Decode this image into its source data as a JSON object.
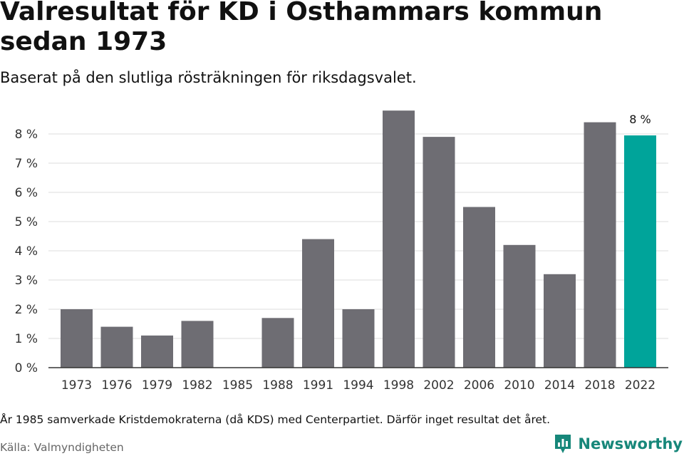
{
  "title": "Valresultat för KD i Osthammars kommun sedan 1973",
  "subtitle": "Baserat på den slutliga rösträkningen för riksdagsvalet.",
  "note": "År 1985 samverkade Kristdemokraterna (då KDS) med Centerpartiet. Därför inget resultat det året.",
  "source": "Källa: Valmyndigheten",
  "brand": "Newsworthy",
  "colors": {
    "bar": "#6e6d73",
    "highlight": "#00a49a",
    "grid": "#dcdcdc",
    "axis": "#333333",
    "brand": "#17877a"
  },
  "chart_data": {
    "type": "bar",
    "categories": [
      "1973",
      "1976",
      "1979",
      "1982",
      "1985",
      "1988",
      "1991",
      "1994",
      "1998",
      "2002",
      "2006",
      "2010",
      "2014",
      "2018",
      "2022"
    ],
    "values": [
      2.0,
      1.4,
      1.1,
      1.6,
      null,
      1.7,
      4.4,
      2.0,
      8.8,
      7.9,
      5.5,
      4.2,
      3.2,
      8.4,
      7.95
    ],
    "unit": "%",
    "ylim": [
      0,
      9
    ],
    "yticks": [
      "0 %",
      "1 %",
      "2 %",
      "3 %",
      "4 %",
      "5 %",
      "6 %",
      "7 %",
      "8 %"
    ],
    "highlight_category": "2022",
    "data_labels": [
      {
        "category": "2022",
        "text": "8 %"
      }
    ],
    "grid": true
  }
}
